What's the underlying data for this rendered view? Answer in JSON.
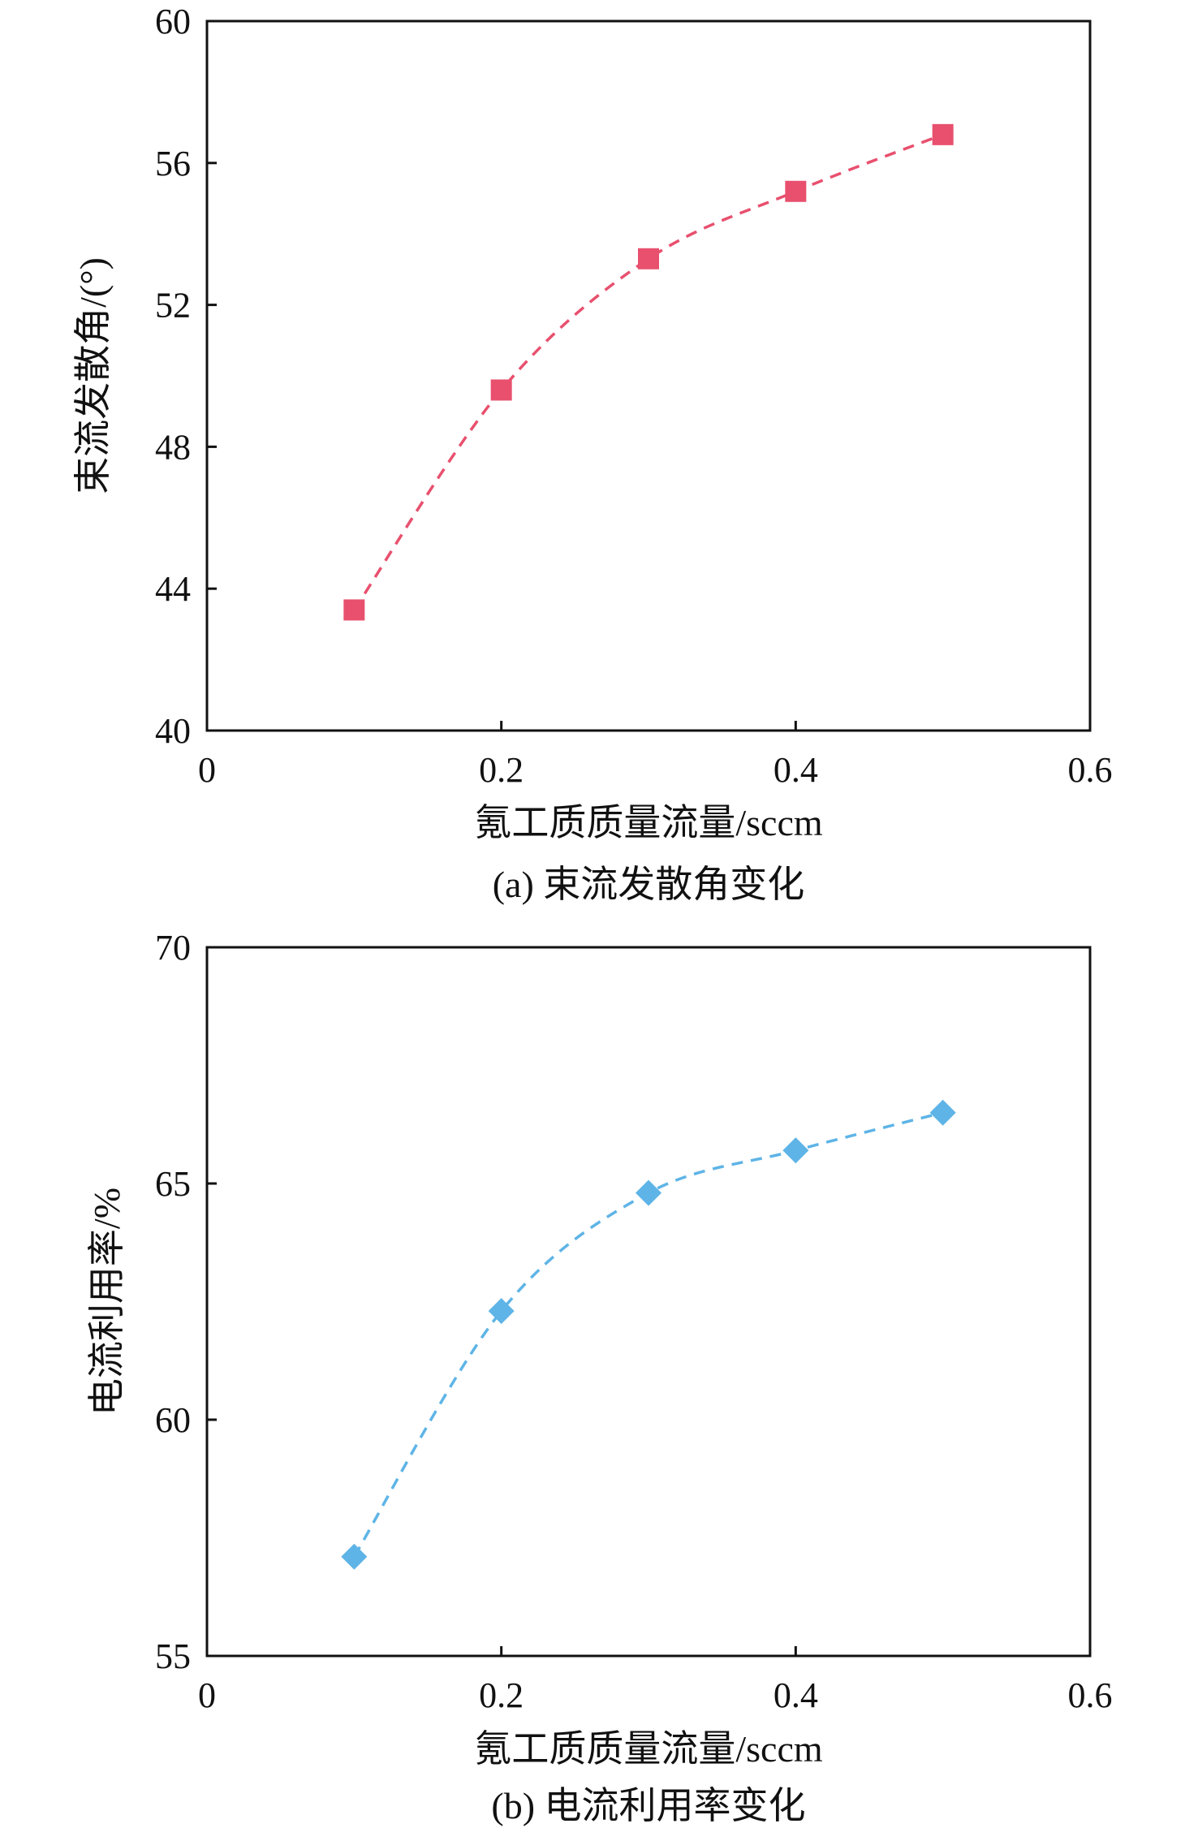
{
  "chart_data": [
    {
      "type": "line",
      "caption": "(a) 束流发散角变化",
      "xlabel": "氪工质质量流量/sccm",
      "ylabel": "束流发散角/(°)",
      "xlim": [
        0,
        0.6
      ],
      "ylim": [
        40,
        60
      ],
      "x_ticks": [
        0,
        0.2,
        0.4,
        0.6
      ],
      "x_tick_labels": [
        "0",
        "0.2",
        "0.4",
        "0.6"
      ],
      "y_ticks": [
        40,
        44,
        48,
        52,
        56,
        60
      ],
      "y_tick_labels": [
        "40",
        "44",
        "48",
        "52",
        "56",
        "60"
      ],
      "grid": false,
      "series": [
        {
          "marker": "square",
          "line_style": "dashed",
          "color": "#e8506e",
          "x": [
            0.1,
            0.2,
            0.3,
            0.4,
            0.5
          ],
          "y": [
            43.4,
            49.6,
            53.3,
            55.2,
            56.8
          ]
        }
      ]
    },
    {
      "type": "line",
      "caption": "(b) 电流利用率变化",
      "xlabel": "氪工质质量流量/sccm",
      "ylabel": "电流利用率/%",
      "xlim": [
        0,
        0.6
      ],
      "ylim": [
        55,
        70
      ],
      "x_ticks": [
        0,
        0.2,
        0.4,
        0.6
      ],
      "x_tick_labels": [
        "0",
        "0.2",
        "0.4",
        "0.6"
      ],
      "y_ticks": [
        55,
        60,
        65,
        70
      ],
      "y_tick_labels": [
        "55",
        "60",
        "65",
        "70"
      ],
      "grid": false,
      "series": [
        {
          "marker": "diamond",
          "line_style": "dashed",
          "color": "#5eb4e6",
          "x": [
            0.1,
            0.2,
            0.3,
            0.4,
            0.5
          ],
          "y": [
            57.1,
            62.3,
            64.8,
            65.7,
            66.5
          ]
        }
      ]
    }
  ]
}
